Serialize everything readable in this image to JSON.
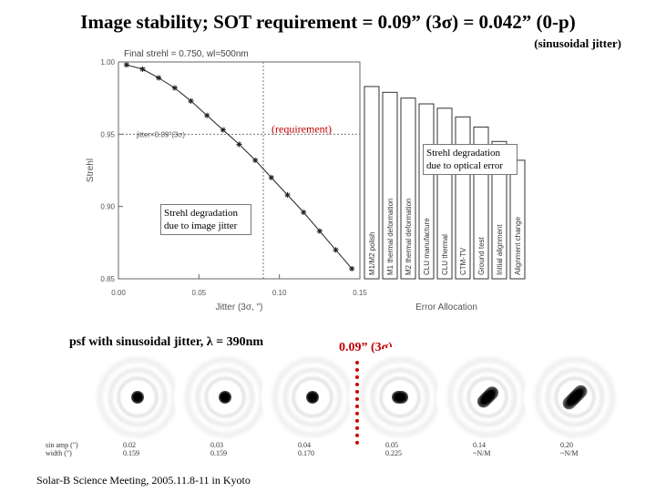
{
  "title": "Image stability; SOT requirement = 0.09” (3σ) = 0.042” (0-p)",
  "subtitle": "(sinusoidal jitter)",
  "chart_data": {
    "type": "line",
    "title": "Final strehl = 0.750, wl=500nm",
    "ylabel": "Strehl",
    "xlabel": "Jitter (3σ, \")",
    "xlim": [
      0,
      0.15
    ],
    "ylim": [
      0.85,
      1.0
    ],
    "xticks": [
      "0.00",
      "0.05",
      "0.10",
      "0.15"
    ],
    "yticks": [
      "1.00",
      "0.95",
      "0.90",
      "0.85"
    ],
    "series": [
      {
        "x": [
          0.005,
          0.015,
          0.025,
          0.035,
          0.045,
          0.055,
          0.065,
          0.075,
          0.085,
          0.095,
          0.105,
          0.115,
          0.125,
          0.135,
          0.145
        ],
        "y": [
          0.998,
          0.995,
          0.989,
          0.982,
          0.973,
          0.963,
          0.953,
          0.943,
          0.932,
          0.92,
          0.908,
          0.896,
          0.883,
          0.87,
          0.857
        ]
      }
    ],
    "annotations": {
      "jitter_line": "jitter=0.09\"(3σ)",
      "requirement": "(requirement)",
      "jitter_note": "Strehl degradation due to image jitter",
      "optical_note": "Strehl degradation due to optical error"
    },
    "allocation": {
      "xlabel": "Error Allocation",
      "labels": [
        "M1/M2 polish",
        "M1 thermal deformation",
        "M2 thermal deformation",
        "CLU manufacture",
        "CLU thermal",
        "CTM-TV",
        "Ground test",
        "Initial alignment",
        "Alignment change"
      ],
      "values": [
        0.983,
        0.979,
        0.975,
        0.971,
        0.968,
        0.962,
        0.955,
        0.945,
        0.932
      ]
    }
  },
  "psf_section": {
    "label": "psf with sinusoidal jitter, λ = 390nm",
    "req_label": "0.09” (3σ)",
    "amp_label": "sin amp (\")",
    "width_label": "width (\")",
    "items": [
      {
        "amp": "0.02",
        "width": "0.159"
      },
      {
        "amp": "0.03",
        "width": "0.159"
      },
      {
        "amp": "0.04",
        "width": "0.170"
      },
      {
        "amp": "0.05",
        "width": "0.225"
      },
      {
        "amp": "0.14",
        "width": "~N/M"
      },
      {
        "amp": "0.20",
        "width": "~N/M"
      }
    ]
  },
  "footer": "Solar-B Science Meeting, 2005.11.8-11 in Kyoto"
}
